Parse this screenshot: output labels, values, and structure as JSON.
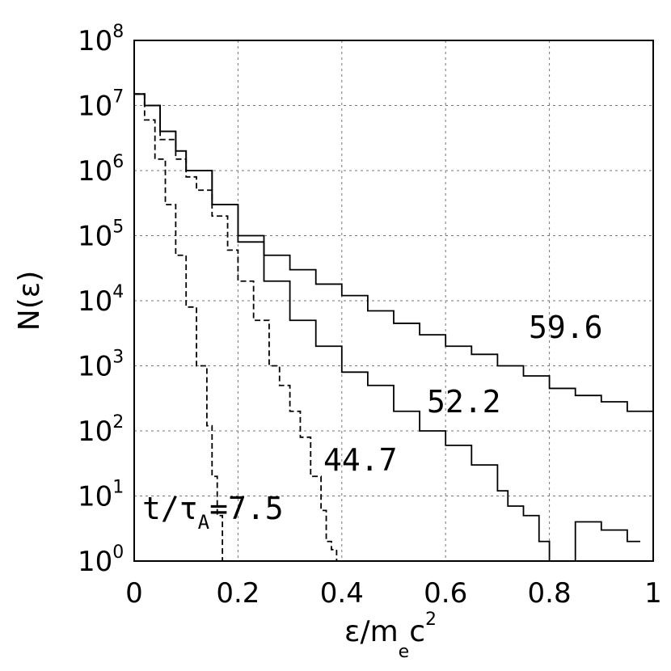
{
  "chart_data": {
    "type": "line",
    "xlabel": "ε/m_e c^2",
    "xlabel_parts": {
      "main": "ε/m",
      "sub": "e",
      "c": "c",
      "sup": "2"
    },
    "ylabel": "N(ε)",
    "xlim": [
      0,
      1
    ],
    "ylim": [
      1,
      100000000
    ],
    "yscale": "log",
    "grid": true,
    "x_tick_labels": [
      "0",
      "0.2",
      "0.4",
      "0.6",
      "0.8",
      "1"
    ],
    "y_tick_labels": [
      "10^0",
      "10^1",
      "10^2",
      "10^3",
      "10^4",
      "10^5",
      "10^6",
      "10^7",
      "10^8"
    ],
    "annotations": [
      {
        "text": "t/τ_A=7.5",
        "main": "t/τ",
        "sub": "A",
        "tail": "=7.5"
      },
      {
        "text": "44.7"
      },
      {
        "text": "52.2"
      },
      {
        "text": "59.6"
      }
    ],
    "series": [
      {
        "label": "7.5",
        "style": "dashed",
        "x": [
          0,
          0.02,
          0.04,
          0.06,
          0.08,
          0.1,
          0.12,
          0.14,
          0.15,
          0.16,
          0.17
        ],
        "y": [
          15000000,
          6000000,
          1500000,
          300000,
          50000,
          8000,
          1000,
          120,
          20,
          5,
          1
        ]
      },
      {
        "label": "44.7",
        "style": "dashed",
        "x": [
          0,
          0.02,
          0.05,
          0.08,
          0.1,
          0.12,
          0.15,
          0.18,
          0.2,
          0.23,
          0.26,
          0.28,
          0.3,
          0.32,
          0.34,
          0.36,
          0.37,
          0.38,
          0.39,
          0.4,
          0.41,
          0.42
        ],
        "y": [
          15000000,
          10000000,
          3000000,
          1500000,
          800000,
          500000,
          200000,
          60000,
          20000,
          5000,
          1000,
          500,
          200,
          80,
          20,
          6,
          2,
          1.5,
          1,
          1,
          1,
          1
        ]
      },
      {
        "label": "52.2",
        "style": "solid",
        "x": [
          0,
          0.02,
          0.05,
          0.08,
          0.1,
          0.15,
          0.2,
          0.25,
          0.3,
          0.35,
          0.4,
          0.45,
          0.5,
          0.55,
          0.6,
          0.65,
          0.7,
          0.72,
          0.75,
          0.78,
          0.8,
          0.85,
          0.9,
          0.95
        ],
        "y": [
          15000000,
          10000000,
          4000000,
          2000000,
          1000000,
          300000,
          80000,
          20000,
          5000,
          2000,
          800,
          500,
          200,
          100,
          60,
          30,
          12,
          7,
          5,
          2,
          1,
          4,
          3,
          2
        ]
      },
      {
        "label": "59.6",
        "style": "solid",
        "x": [
          0,
          0.02,
          0.05,
          0.08,
          0.1,
          0.15,
          0.2,
          0.25,
          0.3,
          0.35,
          0.4,
          0.45,
          0.5,
          0.55,
          0.6,
          0.65,
          0.7,
          0.75,
          0.8,
          0.85,
          0.9,
          0.95,
          1
        ],
        "y": [
          15000000,
          10000000,
          4000000,
          2000000,
          1000000,
          300000,
          100000,
          50000,
          30000,
          18000,
          12000,
          7000,
          4500,
          3000,
          2000,
          1500,
          1000,
          700,
          450,
          350,
          280,
          200,
          140
        ]
      }
    ]
  }
}
